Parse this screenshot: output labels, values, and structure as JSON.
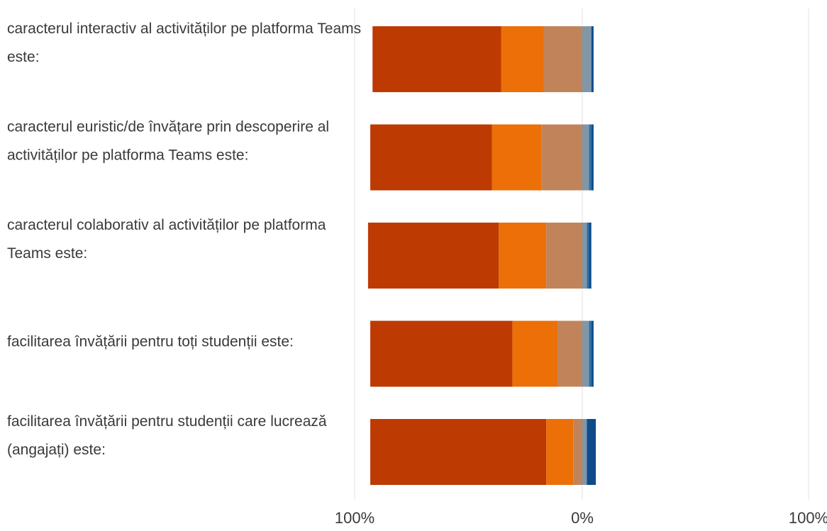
{
  "chart_data": {
    "type": "bar",
    "subtype": "diverging-stacked-horizontal",
    "orientation": "horizontal",
    "categories": [
      [
        "caracterul interactiv al activităților pe platforma Teams",
        "este:"
      ],
      [
        "caracterul euristic/de învățare prin descoperire al",
        "activităților pe platforma Teams este:"
      ],
      [
        "caracterul colaborativ al activităților pe platforma",
        "Teams este:"
      ],
      [
        "facilitarea învățării pentru toți studenții este:"
      ],
      [
        "facilitarea învățării pentru studenții care lucrează",
        "(angajați) este:"
      ]
    ],
    "x_ticks": [
      "100%",
      "0%",
      "100%"
    ],
    "xlim": [
      -100,
      100
    ],
    "grid": "vertical",
    "series": [
      {
        "color": "#bd3a02",
        "side": "negative",
        "values": [
          57,
          54,
          58,
          63,
          78
        ]
      },
      {
        "color": "#ec6f07",
        "side": "negative",
        "values": [
          19,
          22,
          21,
          20,
          12
        ]
      },
      {
        "color": "#c1845a",
        "side": "negative",
        "values": [
          17,
          18,
          16,
          11,
          4
        ]
      },
      {
        "color": "#a8acb0",
        "side": "negative",
        "values": [
          0,
          0,
          0,
          0,
          0
        ]
      },
      {
        "color": "#7f97a9",
        "side": "positive",
        "values": [
          4,
          3,
          2,
          3,
          2
        ]
      },
      {
        "color": "#2e6da4",
        "side": "positive",
        "values": [
          0,
          1,
          1,
          1,
          0
        ]
      },
      {
        "color": "#0f4b8a",
        "side": "positive",
        "values": [
          1,
          1,
          1,
          1,
          4
        ]
      }
    ]
  }
}
